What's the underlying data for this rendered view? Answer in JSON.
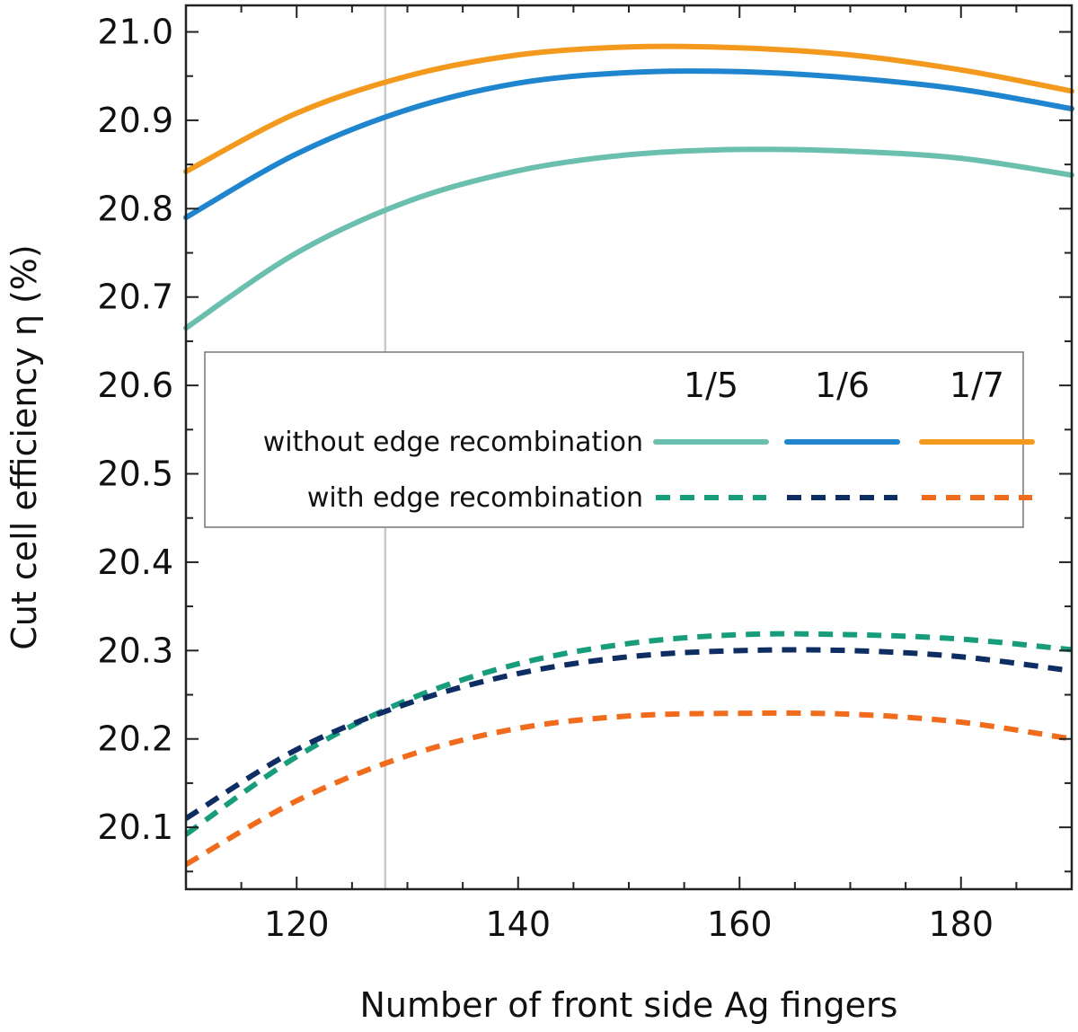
{
  "chart_data": {
    "type": "line",
    "xlabel": "Number of front side Ag fingers",
    "ylabel": "Cut cell efficiency η (%)",
    "xlim": [
      110,
      190
    ],
    "ylim": [
      20.03,
      21.03
    ],
    "xticks": [
      120,
      140,
      160,
      180
    ],
    "yticks": [
      20.1,
      20.2,
      20.3,
      20.4,
      20.5,
      20.6,
      20.7,
      20.8,
      20.9,
      21.0
    ],
    "ytick_labels": [
      "20.1",
      "20.2",
      "20.3",
      "20.4",
      "20.5",
      "20.6",
      "20.7",
      "20.8",
      "20.9",
      "21.0"
    ],
    "xtick_labels": [
      "120",
      "140",
      "160",
      "180"
    ],
    "reference_line_x": 128,
    "grid": false,
    "legend": {
      "placement": "center",
      "column_headers": [
        "1/5",
        "1/6",
        "1/7"
      ],
      "row_labels": [
        "without edge recombination",
        "with edge recombination"
      ]
    },
    "series": [
      {
        "group": "without edge recombination",
        "cut": "1/5",
        "color": "#6bbfae",
        "style": "solid",
        "x": [
          110,
          120,
          130,
          140,
          150,
          160,
          170,
          180,
          190
        ],
        "y": [
          20.665,
          20.75,
          20.808,
          20.843,
          20.861,
          20.867,
          20.865,
          20.857,
          20.838
        ]
      },
      {
        "group": "without edge recombination",
        "cut": "1/6",
        "color": "#1f85cf",
        "style": "solid",
        "x": [
          110,
          120,
          130,
          140,
          150,
          160,
          170,
          180,
          190
        ],
        "y": [
          20.79,
          20.862,
          20.912,
          20.942,
          20.954,
          20.955,
          20.948,
          20.935,
          20.913
        ]
      },
      {
        "group": "without edge recombination",
        "cut": "1/7",
        "color": "#f39a1e",
        "style": "solid",
        "x": [
          110,
          120,
          130,
          140,
          150,
          160,
          170,
          180,
          190
        ],
        "y": [
          20.842,
          20.908,
          20.95,
          20.974,
          20.983,
          20.982,
          20.974,
          20.957,
          20.933
        ]
      },
      {
        "group": "with edge recombination",
        "cut": "1/5",
        "color": "#179d7c",
        "style": "dashed",
        "x": [
          110,
          120,
          130,
          140,
          150,
          160,
          170,
          180,
          190
        ],
        "y": [
          20.092,
          20.18,
          20.244,
          20.285,
          20.308,
          20.318,
          20.318,
          20.313,
          20.301
        ]
      },
      {
        "group": "with edge recombination",
        "cut": "1/6",
        "color": "#0e2d63",
        "style": "dashed",
        "x": [
          110,
          120,
          130,
          140,
          150,
          160,
          170,
          180,
          190
        ],
        "y": [
          20.11,
          20.188,
          20.24,
          20.274,
          20.293,
          20.3,
          20.3,
          20.293,
          20.277
        ]
      },
      {
        "group": "with edge recombination",
        "cut": "1/7",
        "color": "#f06c1c",
        "style": "dashed",
        "x": [
          110,
          120,
          130,
          140,
          150,
          160,
          170,
          180,
          190
        ],
        "y": [
          20.058,
          20.13,
          20.181,
          20.212,
          20.226,
          20.229,
          20.228,
          20.219,
          20.2
        ]
      }
    ]
  }
}
